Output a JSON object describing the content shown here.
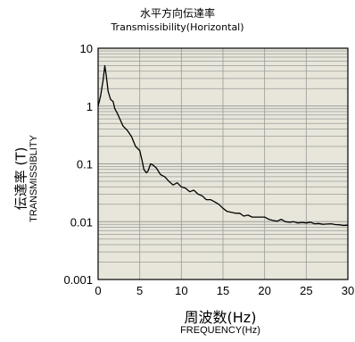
{
  "chart_data": {
    "type": "line",
    "title": "水平方向伝達率",
    "subtitle": "Transmissibility(Horizontal)",
    "ylabel_jp": "伝達率 (T)",
    "ylabel_en": "TRANSMISSIBLITY",
    "xlabel_jp": "周波数(Hz)",
    "xlabel_en": "FREQUENCY(Hz)",
    "xlim": [
      0,
      30
    ],
    "ylim": [
      0.001,
      10
    ],
    "yscale": "log",
    "grid": true,
    "xticks": [
      0,
      5,
      10,
      15,
      20,
      25,
      30
    ],
    "xtick_labels": [
      "0",
      "5",
      "10",
      "15",
      "20",
      "25",
      "30"
    ],
    "yticks": [
      10,
      1,
      0.1,
      0.01,
      0.001
    ],
    "ytick_labels": [
      "10",
      "1",
      "0.1",
      "0.01",
      "0.001"
    ],
    "colors": {
      "plot_bg": "#e8e6da",
      "grid": "#9a9a9a",
      "line": "#000000",
      "frame": "#000000"
    },
    "series": [
      {
        "x": [
          0,
          0.3,
          0.6,
          0.8,
          1.0,
          1.2,
          1.5,
          1.8,
          2.0,
          2.3,
          2.6,
          3.0,
          3.5,
          4.0,
          4.5,
          5.0,
          5.3,
          5.5,
          5.8,
          6.0,
          6.3,
          6.6,
          7.0,
          7.5,
          8.0,
          8.5,
          9.0,
          9.5,
          10.0,
          10.5,
          11.0,
          11.5,
          12.0,
          12.5,
          13.0,
          13.5,
          14.0,
          14.5,
          15.0,
          15.5,
          16.0,
          16.5,
          17.0,
          17.5,
          18.0,
          18.5,
          19.0,
          19.5,
          20.0,
          20.5,
          21.0,
          21.5,
          22.0,
          22.5,
          23.0,
          23.5,
          24.0,
          24.5,
          25.0,
          25.5,
          26.0,
          26.5,
          27.0,
          27.5,
          28.0,
          28.5,
          29.0,
          29.5,
          30.0
        ],
        "y": [
          1.0,
          1.5,
          2.8,
          5.0,
          3.2,
          1.8,
          1.3,
          1.2,
          0.9,
          0.75,
          0.6,
          0.45,
          0.38,
          0.3,
          0.2,
          0.17,
          0.11,
          0.08,
          0.07,
          0.075,
          0.1,
          0.095,
          0.085,
          0.065,
          0.06,
          0.05,
          0.043,
          0.047,
          0.04,
          0.038,
          0.033,
          0.035,
          0.03,
          0.028,
          0.024,
          0.024,
          0.022,
          0.02,
          0.017,
          0.015,
          0.0145,
          0.014,
          0.014,
          0.0125,
          0.013,
          0.012,
          0.012,
          0.012,
          0.012,
          0.011,
          0.0105,
          0.0102,
          0.011,
          0.01,
          0.0098,
          0.01,
          0.0095,
          0.0097,
          0.0095,
          0.0098,
          0.0092,
          0.0093,
          0.009,
          0.0091,
          0.0092,
          0.0089,
          0.0088,
          0.0086,
          0.0087
        ]
      }
    ]
  }
}
